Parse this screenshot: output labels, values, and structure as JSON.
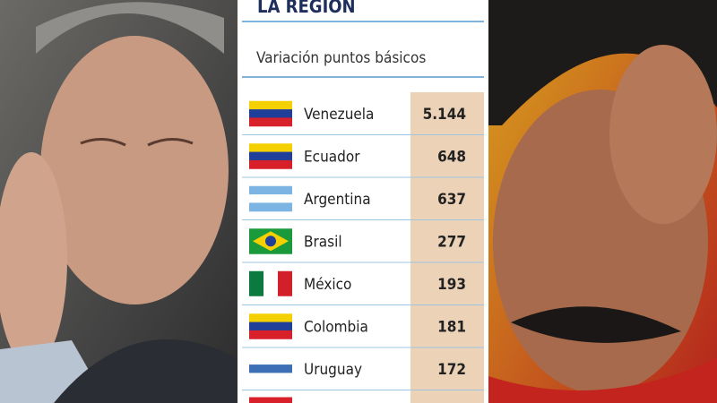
{
  "header": {
    "title": "LA REGIÓN",
    "subtitle": "Variación puntos básicos"
  },
  "table": {
    "rows": [
      [
        "Venezuela",
        "5.144"
      ],
      [
        "Ecuador",
        "648"
      ],
      [
        "Argentina",
        "637"
      ],
      [
        "Brasil",
        "277"
      ],
      [
        "México",
        "193"
      ],
      [
        "Colombia",
        "181"
      ],
      [
        "Uruguay",
        "172"
      ]
    ]
  }
}
